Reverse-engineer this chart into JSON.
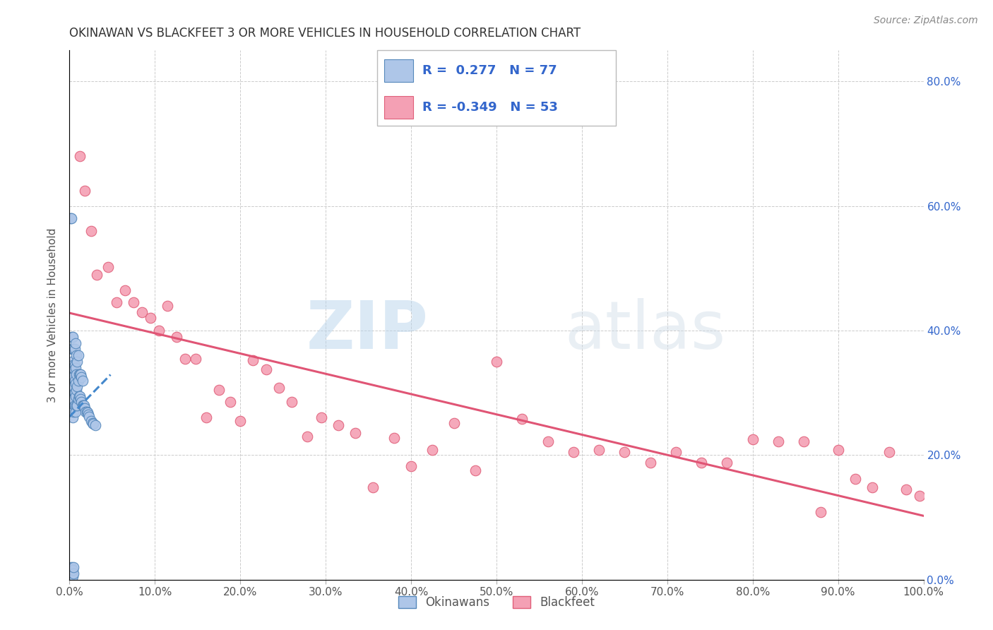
{
  "title": "OKINAWAN VS BLACKFEET 3 OR MORE VEHICLES IN HOUSEHOLD CORRELATION CHART",
  "source": "Source: ZipAtlas.com",
  "ylabel": "3 or more Vehicles in Household",
  "xlim": [
    0.0,
    1.0
  ],
  "ylim": [
    0.0,
    0.85
  ],
  "okinawan_color": "#aec6e8",
  "blackfeet_color": "#f4a0b4",
  "okinawan_edge": "#5588bb",
  "blackfeet_edge": "#e0607a",
  "trendline_okinawan_color": "#4488cc",
  "trendline_blackfeet_color": "#e05575",
  "R_okinawan": 0.277,
  "N_okinawan": 77,
  "R_blackfeet": -0.349,
  "N_blackfeet": 53,
  "watermark_zip": "ZIP",
  "watermark_atlas": "atlas",
  "background_color": "#ffffff",
  "grid_color": "#cccccc",
  "right_axis_color": "#3366cc",
  "legend_text_color": "#3366cc",
  "title_color": "#333333",
  "source_color": "#888888"
}
